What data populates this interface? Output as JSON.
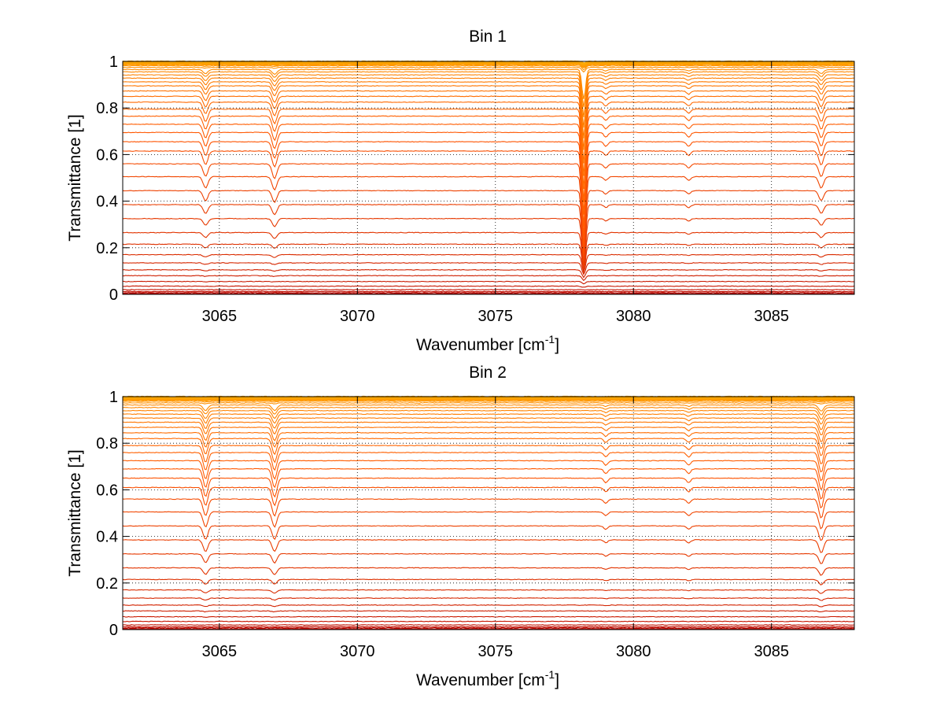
{
  "chart_data": [
    {
      "type": "line",
      "title": "Bin 1",
      "xlabel": "Wavenumber [cm",
      "xlabel_sup": "-1",
      "xlabel_end": "]",
      "ylabel": "Transmittance [1]",
      "xlim": [
        3061.5,
        3088
      ],
      "ylim": [
        0,
        1
      ],
      "x_ticks": [
        3065,
        3070,
        3075,
        3080,
        3085
      ],
      "x_tick_labels": [
        "3065",
        "3070",
        "3075",
        "3080",
        "3085"
      ],
      "y_ticks": [
        0,
        0.2,
        0.4,
        0.6,
        0.8,
        1
      ],
      "y_tick_labels": [
        "0",
        "0.2",
        "0.4",
        "0.6",
        "0.8",
        "1"
      ],
      "grid": true,
      "legend": "none",
      "series_count": 40,
      "color_map": [
        "#b30000",
        "#ff5500",
        "#ffaa00"
      ],
      "series_baselines": [
        0.0,
        0.003,
        0.007,
        0.012,
        0.02,
        0.035,
        0.055,
        0.08,
        0.105,
        0.135,
        0.17,
        0.215,
        0.265,
        0.325,
        0.385,
        0.445,
        0.505,
        0.56,
        0.615,
        0.655,
        0.695,
        0.73,
        0.765,
        0.795,
        0.825,
        0.85,
        0.873,
        0.895,
        0.912,
        0.928,
        0.942,
        0.955,
        0.965,
        0.974,
        0.981,
        0.987,
        0.991,
        0.994,
        0.997,
        0.999
      ],
      "absorption_lines": [
        {
          "center": 3064.5,
          "width": 0.12,
          "strength": 0.06
        },
        {
          "center": 3067.0,
          "width": 0.12,
          "strength": 0.07
        },
        {
          "center": 3078.2,
          "width": 0.09,
          "strength": 0.45
        },
        {
          "center": 3079.0,
          "width": 0.1,
          "strength": 0.02
        },
        {
          "center": 3082.0,
          "width": 0.1,
          "strength": 0.02
        },
        {
          "center": 3086.8,
          "width": 0.12,
          "strength": 0.06
        }
      ]
    },
    {
      "type": "line",
      "title": "Bin 2",
      "xlabel": "Wavenumber [cm",
      "xlabel_sup": "-1",
      "xlabel_end": "]",
      "ylabel": "Transmittance [1]",
      "xlim": [
        3061.5,
        3088
      ],
      "ylim": [
        0,
        1
      ],
      "x_ticks": [
        3065,
        3070,
        3075,
        3080,
        3085
      ],
      "x_tick_labels": [
        "3065",
        "3070",
        "3075",
        "3080",
        "3085"
      ],
      "y_ticks": [
        0,
        0.2,
        0.4,
        0.6,
        0.8,
        1
      ],
      "y_tick_labels": [
        "0",
        "0.2",
        "0.4",
        "0.6",
        "0.8",
        "1"
      ],
      "grid": true,
      "legend": "none",
      "series_count": 40,
      "color_map": [
        "#b30000",
        "#ff5500",
        "#ffaa00"
      ],
      "series_baselines": [
        0.0,
        0.003,
        0.007,
        0.012,
        0.02,
        0.035,
        0.055,
        0.08,
        0.105,
        0.135,
        0.17,
        0.215,
        0.265,
        0.325,
        0.385,
        0.445,
        0.505,
        0.56,
        0.61,
        0.65,
        0.69,
        0.725,
        0.76,
        0.79,
        0.82,
        0.845,
        0.868,
        0.89,
        0.908,
        0.925,
        0.94,
        0.953,
        0.964,
        0.973,
        0.98,
        0.986,
        0.991,
        0.994,
        0.997,
        0.999
      ],
      "absorption_lines": [
        {
          "center": 3064.5,
          "width": 0.12,
          "strength": 0.08
        },
        {
          "center": 3067.0,
          "width": 0.12,
          "strength": 0.08
        },
        {
          "center": 3079.0,
          "width": 0.1,
          "strength": 0.02
        },
        {
          "center": 3082.0,
          "width": 0.1,
          "strength": 0.02
        },
        {
          "center": 3086.8,
          "width": 0.12,
          "strength": 0.09
        }
      ]
    }
  ]
}
